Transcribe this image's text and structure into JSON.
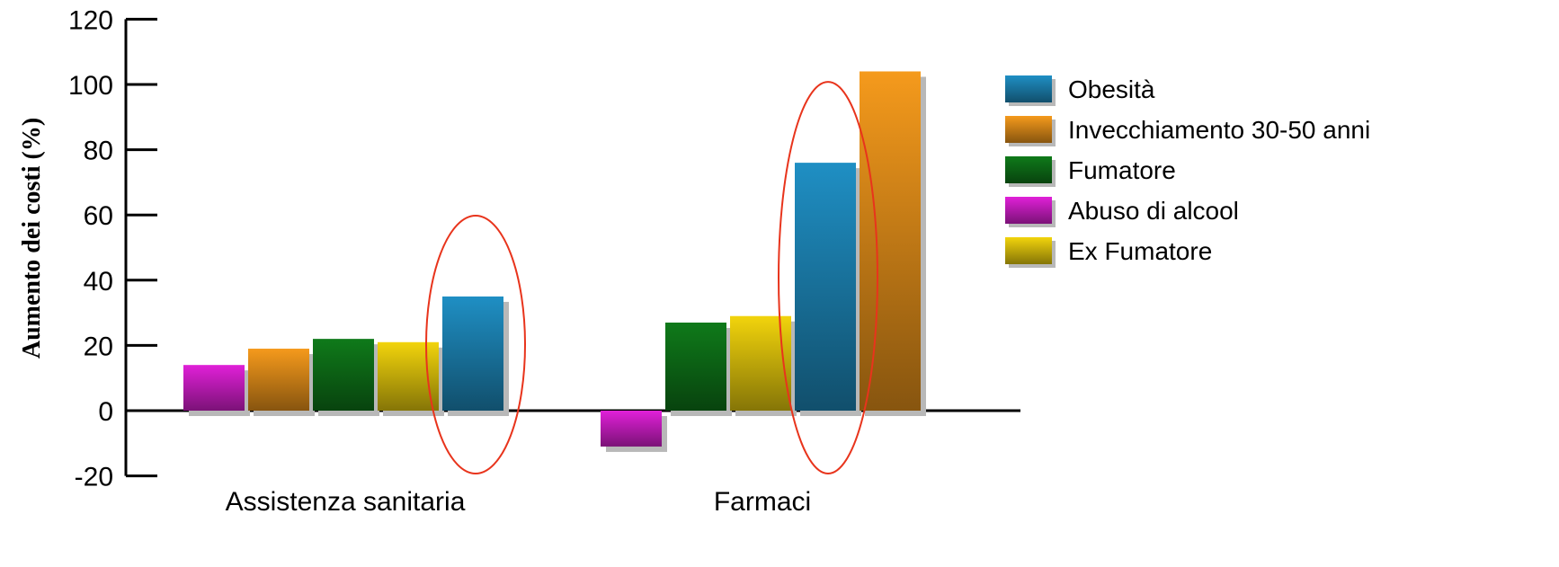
{
  "chart_data": {
    "type": "bar",
    "title": "",
    "xlabel": "",
    "ylabel": "Aumento   dei   costi   (%)",
    "ylim": [
      -20,
      120
    ],
    "yticks": [
      -20,
      0,
      20,
      40,
      60,
      80,
      100,
      120
    ],
    "categories": [
      "Assistenza sanitaria",
      "Farmaci"
    ],
    "legend_position": "right",
    "series": [
      {
        "name": "Obesità",
        "color": "#1f8fc4",
        "values": [
          35,
          76
        ]
      },
      {
        "name": "Invecchiamento 30-50 anni",
        "color": "#f59a1c",
        "values": [
          19,
          104
        ]
      },
      {
        "name": "Fumatore",
        "color": "#0f7a1a",
        "values": [
          22,
          27
        ]
      },
      {
        "name": "Abuso di alcool",
        "color": "#e020d8",
        "values": [
          14,
          -11
        ]
      },
      {
        "name": "Ex Fumatore",
        "color": "#f2d40c",
        "values": [
          21,
          29
        ]
      }
    ],
    "bar_order": [
      [
        "Abuso di alcool",
        "Invecchiamento 30-50 anni",
        "Fumatore",
        "Ex Fumatore",
        "Obesità"
      ],
      [
        "Abuso di alcool",
        "Fumatore",
        "Ex Fumatore",
        "Obesità",
        "Invecchiamento 30-50 anni"
      ]
    ],
    "annotations": [
      {
        "type": "ellipse",
        "color": "#e8341c",
        "target": "Obesità - Assistenza sanitaria"
      },
      {
        "type": "ellipse",
        "color": "#e8341c",
        "target": "Obesità - Farmaci"
      }
    ],
    "grid": false
  }
}
